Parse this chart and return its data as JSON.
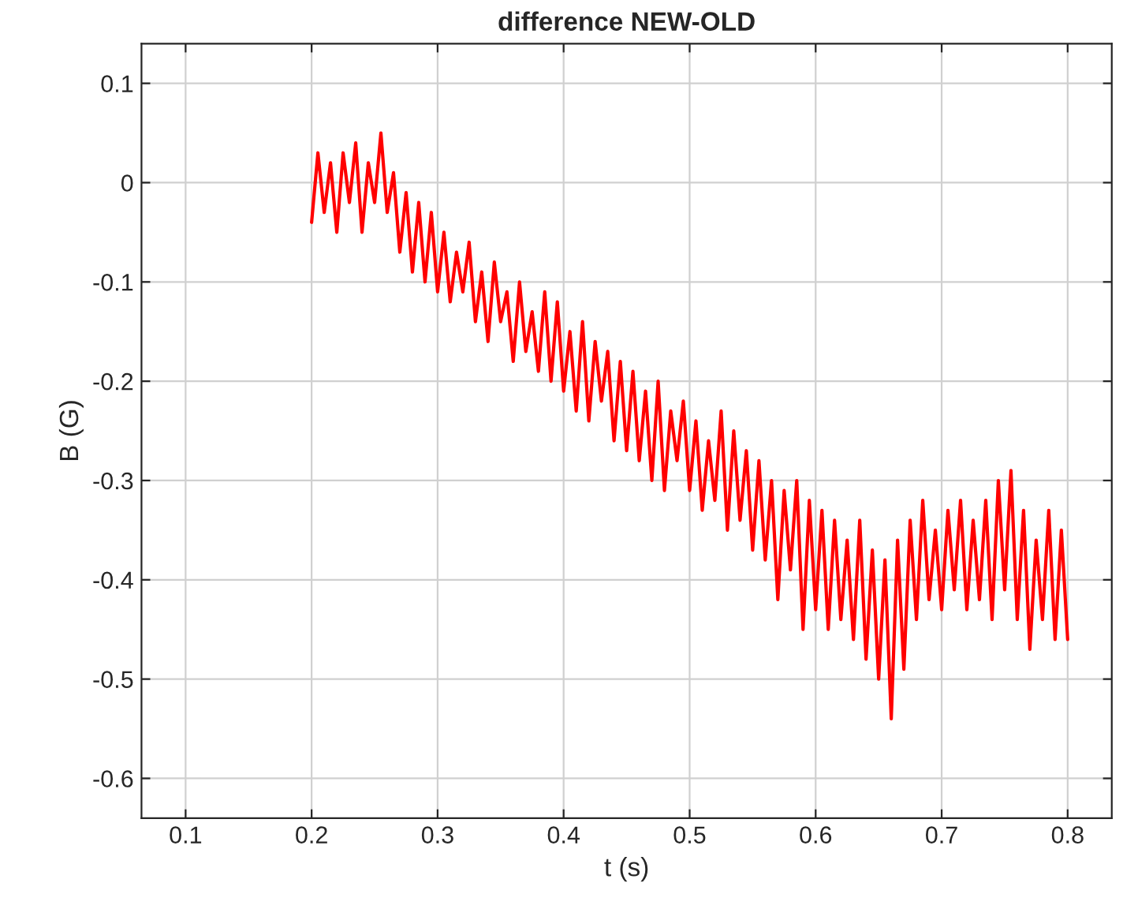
{
  "chart_data": {
    "type": "line",
    "title": "difference NEW-OLD",
    "xlabel": "t (s)",
    "ylabel": "B (G)",
    "xlim": [
      0.065,
      0.835
    ],
    "ylim": [
      -0.64,
      0.14
    ],
    "xticks": [
      0.1,
      0.2,
      0.3,
      0.4,
      0.5,
      0.6,
      0.7,
      0.8
    ],
    "yticks": [
      -0.6,
      -0.5,
      -0.4,
      -0.3,
      -0.2,
      -0.1,
      0,
      0.1
    ],
    "grid": true,
    "line_style": "solid",
    "marker": "none",
    "series": [
      {
        "color": "#ff0000",
        "x": [
          0.2,
          0.205,
          0.21,
          0.215,
          0.22,
          0.225,
          0.23,
          0.235,
          0.24,
          0.245,
          0.25,
          0.255,
          0.26,
          0.265,
          0.27,
          0.275,
          0.28,
          0.285,
          0.29,
          0.295,
          0.3,
          0.305,
          0.31,
          0.315,
          0.32,
          0.325,
          0.33,
          0.335,
          0.34,
          0.345,
          0.35,
          0.355,
          0.36,
          0.365,
          0.37,
          0.375,
          0.38,
          0.385,
          0.39,
          0.395,
          0.4,
          0.405,
          0.41,
          0.415,
          0.42,
          0.425,
          0.43,
          0.435,
          0.44,
          0.445,
          0.45,
          0.455,
          0.46,
          0.465,
          0.47,
          0.475,
          0.48,
          0.485,
          0.49,
          0.495,
          0.5,
          0.505,
          0.51,
          0.515,
          0.52,
          0.525,
          0.53,
          0.535,
          0.54,
          0.545,
          0.55,
          0.555,
          0.56,
          0.565,
          0.57,
          0.575,
          0.58,
          0.585,
          0.59,
          0.595,
          0.6,
          0.605,
          0.61,
          0.615,
          0.62,
          0.625,
          0.63,
          0.635,
          0.64,
          0.645,
          0.65,
          0.655,
          0.66,
          0.665,
          0.67,
          0.675,
          0.68,
          0.685,
          0.69,
          0.695,
          0.7,
          0.705,
          0.71,
          0.715,
          0.72,
          0.725,
          0.73,
          0.735,
          0.74,
          0.745,
          0.75,
          0.755,
          0.76,
          0.765,
          0.77,
          0.775,
          0.78,
          0.785,
          0.79,
          0.795,
          0.8
        ],
        "values": [
          -0.04,
          0.03,
          -0.03,
          0.02,
          -0.05,
          0.03,
          -0.02,
          0.04,
          -0.05,
          0.02,
          -0.02,
          0.05,
          -0.03,
          0.01,
          -0.07,
          -0.01,
          -0.09,
          -0.02,
          -0.1,
          -0.03,
          -0.11,
          -0.05,
          -0.12,
          -0.07,
          -0.11,
          -0.06,
          -0.14,
          -0.09,
          -0.16,
          -0.08,
          -0.14,
          -0.11,
          -0.18,
          -0.1,
          -0.17,
          -0.13,
          -0.19,
          -0.11,
          -0.2,
          -0.12,
          -0.21,
          -0.15,
          -0.23,
          -0.14,
          -0.24,
          -0.16,
          -0.22,
          -0.17,
          -0.26,
          -0.18,
          -0.27,
          -0.19,
          -0.28,
          -0.21,
          -0.3,
          -0.2,
          -0.31,
          -0.23,
          -0.28,
          -0.22,
          -0.31,
          -0.24,
          -0.33,
          -0.26,
          -0.32,
          -0.23,
          -0.35,
          -0.25,
          -0.34,
          -0.27,
          -0.37,
          -0.28,
          -0.38,
          -0.3,
          -0.42,
          -0.31,
          -0.39,
          -0.3,
          -0.45,
          -0.32,
          -0.43,
          -0.33,
          -0.45,
          -0.34,
          -0.44,
          -0.36,
          -0.46,
          -0.34,
          -0.48,
          -0.37,
          -0.5,
          -0.38,
          -0.54,
          -0.36,
          -0.49,
          -0.34,
          -0.44,
          -0.32,
          -0.42,
          -0.35,
          -0.43,
          -0.33,
          -0.41,
          -0.32,
          -0.43,
          -0.34,
          -0.42,
          -0.32,
          -0.44,
          -0.3,
          -0.41,
          -0.29,
          -0.44,
          -0.33,
          -0.47,
          -0.36,
          -0.44,
          -0.33,
          -0.46,
          -0.35,
          -0.46
        ]
      }
    ]
  }
}
